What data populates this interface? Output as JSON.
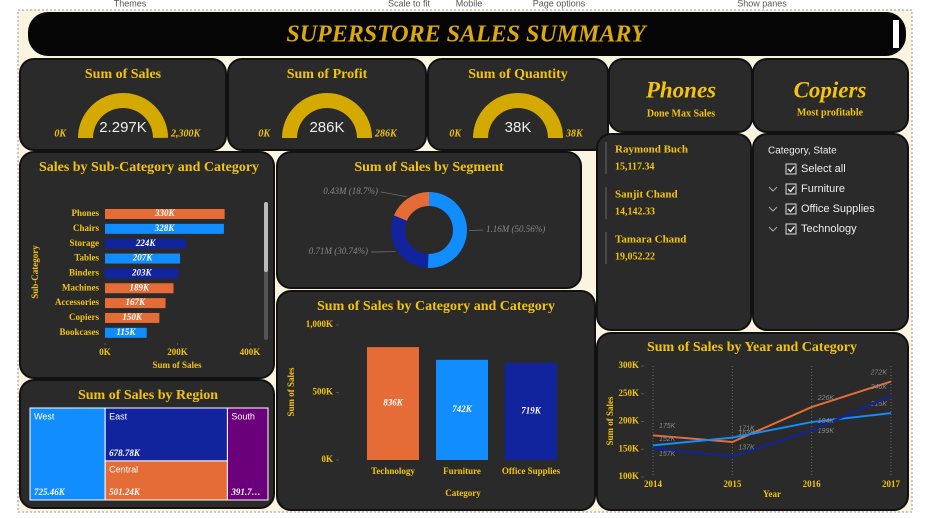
{
  "toolbar": [
    "Themes",
    "Scale to fit",
    "Mobile",
    "Page options",
    "Show panes"
  ],
  "title": "SUPERSTORE SALES SUMMARY",
  "cards": [
    {
      "value": "Phones",
      "label": "Done Max Sales"
    },
    {
      "value": "Copiers",
      "label": "Most profitable"
    }
  ],
  "customers": [
    {
      "name": "Raymond Buch",
      "value": "15,117.34"
    },
    {
      "name": "Sanjit Chand",
      "value": "14,142.33"
    },
    {
      "name": "Tamara Chand",
      "value": "19,052.22"
    }
  ],
  "slicer": {
    "title": "Category, State",
    "items": [
      "Select all",
      "Furniture",
      "Office Supplies",
      "Technology"
    ]
  },
  "chart_data": [
    {
      "type": "gauge",
      "title": "Sum of Sales",
      "value": 2297,
      "value_label": "2.297K",
      "min": {
        "value": 0,
        "label": "0K"
      },
      "max": {
        "value": 2300,
        "label": "2,300K"
      },
      "color": "#d4a900"
    },
    {
      "type": "gauge",
      "title": "Sum of Profit",
      "value": 286,
      "value_label": "286K",
      "min": {
        "value": 0,
        "label": "0K"
      },
      "max": {
        "value": 286,
        "label": "286K"
      },
      "color": "#d4a900"
    },
    {
      "type": "gauge",
      "title": "Sum of Quantity",
      "value": 38,
      "value_label": "38K",
      "min": {
        "value": 0,
        "label": "0K"
      },
      "max": {
        "value": 38,
        "label": "38K"
      },
      "color": "#d4a900"
    },
    {
      "type": "hbar",
      "title": "Sales by Sub-Category and Category",
      "xlabel": "Sum of Sales",
      "ylabel": "Sub-Category",
      "categories": [
        "Phones",
        "Chairs",
        "Storage",
        "Tables",
        "Binders",
        "Machines",
        "Accessories",
        "Copiers",
        "Bookcases"
      ],
      "values": [
        330,
        328,
        224,
        207,
        203,
        189,
        167,
        150,
        115
      ],
      "value_labels": [
        "330K",
        "328K",
        "224K",
        "207K",
        "203K",
        "189K",
        "167K",
        "150K",
        "115K"
      ],
      "colors": [
        "#e66c37",
        "#118dff",
        "#12239e",
        "#118dff",
        "#12239e",
        "#e66c37",
        "#e66c37",
        "#e66c37",
        "#118dff"
      ],
      "xlim": [
        0,
        400
      ],
      "xticks": [
        {
          "value": 0,
          "label": "0K"
        },
        {
          "value": 200,
          "label": "200K"
        },
        {
          "value": 400,
          "label": "400K"
        }
      ]
    },
    {
      "type": "donut",
      "title": "Sum of Sales by Segment",
      "values": [
        1.16,
        0.71,
        0.43
      ],
      "value_labels": [
        "1.16M (50.56%)",
        "0.71M (30.74%)",
        "0.43M (18.7%)"
      ],
      "colors": [
        "#118dff",
        "#12239e",
        "#e66c37"
      ]
    },
    {
      "type": "treemap",
      "title": "Sum of Sales by Region",
      "categories": [
        "West",
        "East",
        "Central",
        "South"
      ],
      "values": [
        725.46,
        678.78,
        501.24,
        391.72
      ],
      "value_labels": [
        "725.46K",
        "678.78K",
        "501.24K",
        "391.7…"
      ],
      "colors": [
        "#118dff",
        "#12239e",
        "#e66c37",
        "#6b007b"
      ]
    },
    {
      "type": "bar",
      "title": "Sum of Sales by Category and Category",
      "xlabel": "Category",
      "ylabel": "Sum of Sales",
      "categories": [
        "Technology",
        "Furniture",
        "Office Supplies"
      ],
      "values": [
        836,
        742,
        719
      ],
      "value_labels": [
        "836K",
        "742K",
        "719K"
      ],
      "colors": [
        "#e66c37",
        "#118dff",
        "#12239e"
      ],
      "ylim": [
        0,
        1000
      ],
      "yticks": [
        {
          "value": 0,
          "label": "0K"
        },
        {
          "value": 500,
          "label": "500K"
        },
        {
          "value": 1000,
          "label": "1,000K"
        }
      ]
    },
    {
      "type": "line",
      "title": "Sum of Sales by Year and Category",
      "xlabel": "Year",
      "ylabel": "Sum of Sales",
      "categories": [
        "2014",
        "2015",
        "2016",
        "2017"
      ],
      "series": [
        {
          "color": "#e66c37",
          "values": [
            175,
            163,
            226,
            272
          ],
          "value_labels": [
            "175K",
            "163K",
            "226K",
            "272K"
          ]
        },
        {
          "color": "#118dff",
          "values": [
            157,
            171,
            199,
            215
          ],
          "value_labels": [
            "157K",
            "171K",
            "199K",
            "215K"
          ]
        },
        {
          "color": "#12239e",
          "values": [
            152,
            137,
            184,
            246
          ],
          "value_labels": [
            "152K",
            "137K",
            "184K",
            "246K"
          ]
        }
      ],
      "ylim": [
        100,
        300
      ],
      "yticks": [
        {
          "value": 100,
          "label": "100K"
        },
        {
          "value": 150,
          "label": "150K"
        },
        {
          "value": 200,
          "label": "200K"
        },
        {
          "value": 250,
          "label": "250K"
        },
        {
          "value": 300,
          "label": "300K"
        }
      ]
    }
  ]
}
